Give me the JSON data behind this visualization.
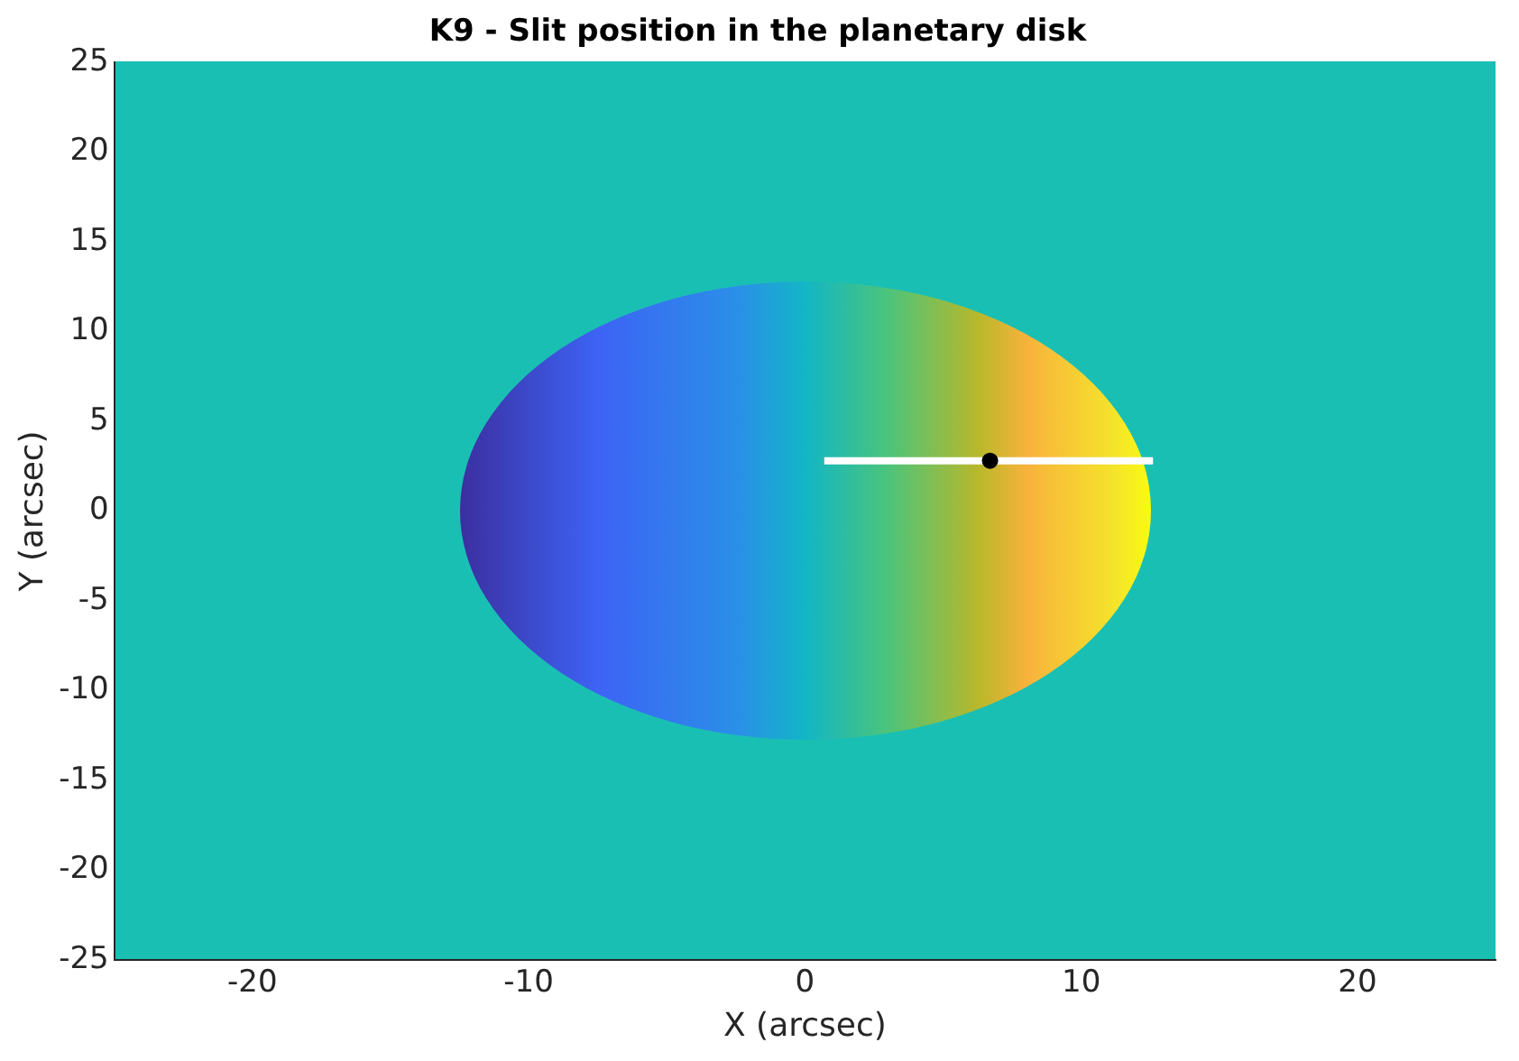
{
  "chart_data": {
    "type": "scatter",
    "title": "K9 - Slit position in the planetary disk",
    "xlabel": "X (arcsec)",
    "ylabel": "Y (arcsec)",
    "xlim": [
      -25,
      25
    ],
    "xticks": [
      -20,
      -10,
      0,
      10,
      20
    ],
    "ylim": [
      -25,
      25
    ],
    "yticks": [
      -25,
      -20,
      -15,
      -10,
      -5,
      0,
      5,
      10,
      15,
      20,
      25
    ],
    "grid": false,
    "legend": false,
    "series": [
      {
        "type": "line",
        "x": [
          0.7,
          12.6
        ],
        "values": [
          2.8,
          2.8
        ],
        "color": "#ffffff"
      },
      {
        "type": "scatter",
        "x": [
          6.7
        ],
        "values": [
          2.8
        ],
        "color": "#000000"
      }
    ]
  }
}
